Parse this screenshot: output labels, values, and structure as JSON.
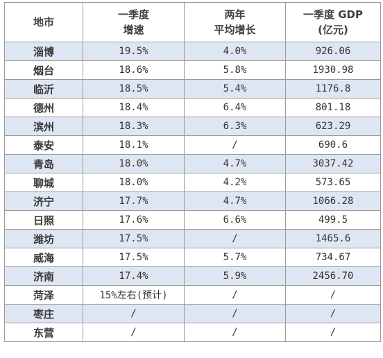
{
  "header": {
    "city": "地市",
    "growth_line1": "一季度",
    "growth_line2": "增速",
    "avg_line1": "两年",
    "avg_line2": "平均增长",
    "gdp_line1": "一季度 GDP",
    "gdp_line2": "(亿元)"
  },
  "rows": [
    {
      "city": "淄博",
      "growth": "19.5%",
      "avg": "4.0%",
      "gdp": "926.06"
    },
    {
      "city": "烟台",
      "growth": "18.6%",
      "avg": "5.8%",
      "gdp": "1930.98"
    },
    {
      "city": "临沂",
      "growth": "18.5%",
      "avg": "5.4%",
      "gdp": "1176.8"
    },
    {
      "city": "德州",
      "growth": "18.4%",
      "avg": "6.4%",
      "gdp": "801.18"
    },
    {
      "city": "滨州",
      "growth": "18.3%",
      "avg": "6.3%",
      "gdp": "623.29"
    },
    {
      "city": "泰安",
      "growth": "18.1%",
      "avg": "/",
      "gdp": "690.6"
    },
    {
      "city": "青岛",
      "growth": "18.0%",
      "avg": "4.7%",
      "gdp": "3037.42"
    },
    {
      "city": "聊城",
      "growth": "18.0%",
      "avg": "4.2%",
      "gdp": "573.65"
    },
    {
      "city": "济宁",
      "growth": "17.7%",
      "avg": "4.7%",
      "gdp": "1066.28"
    },
    {
      "city": "日照",
      "growth": "17.6%",
      "avg": "6.6%",
      "gdp": "499.5"
    },
    {
      "city": "潍坊",
      "growth": "17.5%",
      "avg": "/",
      "gdp": "1465.6"
    },
    {
      "city": "威海",
      "growth": "17.5%",
      "avg": "5.7%",
      "gdp": "734.67"
    },
    {
      "city": "济南",
      "growth": "17.4%",
      "avg": "5.9%",
      "gdp": "2456.70"
    },
    {
      "city": "菏泽",
      "growth": "15%左右(预计)",
      "avg": "/",
      "gdp": "/"
    },
    {
      "city": "枣庄",
      "growth": "/",
      "avg": "/",
      "gdp": "/"
    },
    {
      "city": "东营",
      "growth": "/",
      "avg": "/",
      "gdp": "/"
    }
  ],
  "colors": {
    "shaded_row": "#dfe6f3",
    "border": "#9a9a9a"
  }
}
